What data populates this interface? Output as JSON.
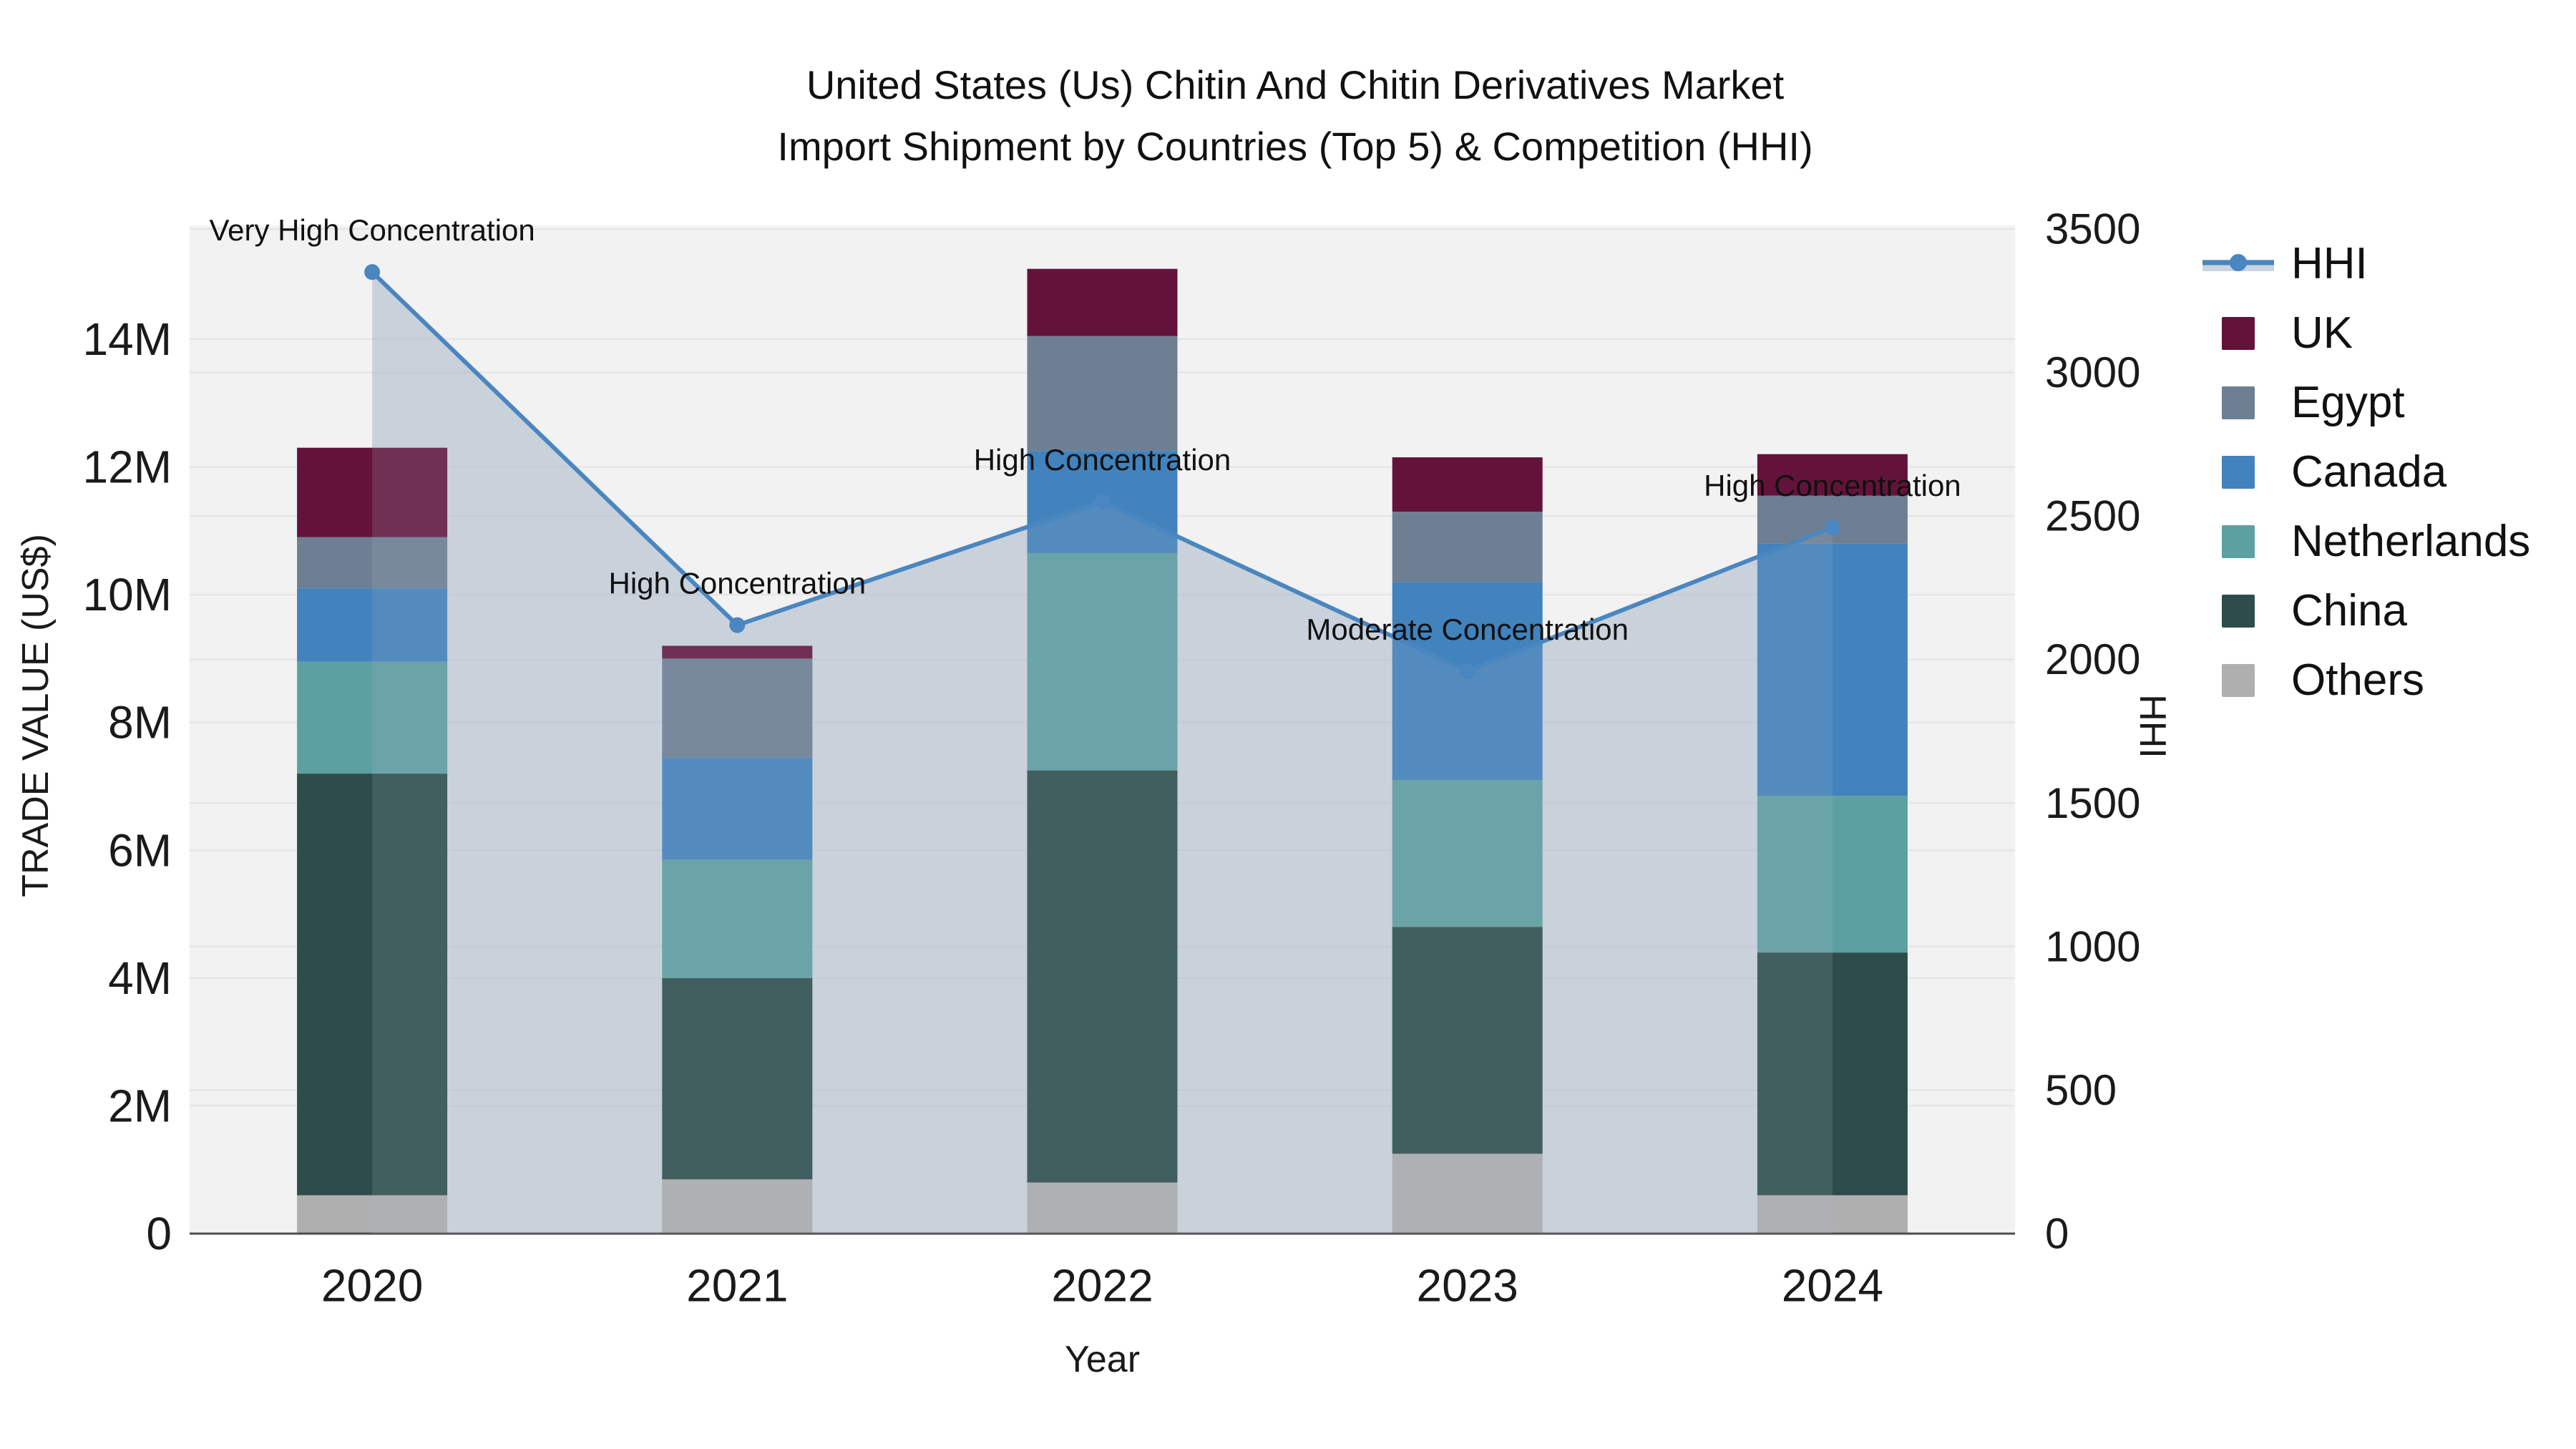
{
  "title": {
    "line1": "United States (Us) Chitin And Chitin Derivatives Market",
    "line2": "Import Shipment by Countries (Top 5) & Competition (HHI)"
  },
  "axes": {
    "x": {
      "title": "Year",
      "categories": [
        "2020",
        "2021",
        "2022",
        "2023",
        "2024"
      ]
    },
    "y_left": {
      "title": "TRADE VALUE (US$)",
      "tick_labels": [
        "0",
        "2M",
        "4M",
        "6M",
        "8M",
        "10M",
        "12M",
        "14M"
      ],
      "tick_values_millions": [
        0,
        2,
        4,
        6,
        8,
        10,
        12,
        14
      ],
      "range_millions": [
        0,
        15.78
      ]
    },
    "y_right": {
      "title": "HHI",
      "tick_values": [
        0,
        500,
        1000,
        1500,
        2000,
        2500,
        3000,
        3500
      ],
      "range": [
        0,
        3500
      ]
    }
  },
  "chart_data": {
    "type": "stacked-bar+line",
    "title": "United States (Us) Chitin And Chitin Derivatives Market Import Shipment by Countries (Top 5) & Competition (HHI)",
    "xlabel": "Year",
    "ylabel_left": "TRADE VALUE (US$)",
    "ylabel_right": "HHI",
    "categories": [
      "2020",
      "2021",
      "2022",
      "2023",
      "2024"
    ],
    "unit": "US$ millions",
    "ylim_left_millions": [
      0,
      15.78
    ],
    "ylim_right": [
      0,
      3500
    ],
    "grid": true,
    "legend_position": "right",
    "stack_series_bottom_to_top": [
      {
        "name": "Others",
        "axis": "left",
        "values_millions": [
          0.6,
          0.85,
          0.8,
          1.25,
          0.6
        ]
      },
      {
        "name": "China",
        "axis": "left",
        "values_millions": [
          6.6,
          3.15,
          6.45,
          3.55,
          3.8
        ]
      },
      {
        "name": "Netherlands",
        "axis": "left",
        "values_millions": [
          1.75,
          1.85,
          3.4,
          2.3,
          2.45
        ]
      },
      {
        "name": "Canada",
        "axis": "left",
        "values_millions": [
          1.15,
          1.6,
          1.6,
          3.1,
          3.95
        ]
      },
      {
        "name": "Egypt",
        "axis": "left",
        "values_millions": [
          0.8,
          1.55,
          1.8,
          1.1,
          0.75
        ]
      },
      {
        "name": "UK",
        "axis": "left",
        "values_millions": [
          1.4,
          0.2,
          1.05,
          0.85,
          0.65
        ]
      }
    ],
    "bar_totals_millions": [
      12.3,
      9.2,
      15.1,
      12.15,
      12.2
    ],
    "line_series": {
      "name": "HHI",
      "axis": "right",
      "values": [
        3350,
        2120,
        2550,
        1960,
        2460
      ]
    },
    "annotations": [
      {
        "category": "2020",
        "text": "Very High Concentration"
      },
      {
        "category": "2021",
        "text": "High Concentration"
      },
      {
        "category": "2022",
        "text": "High Concentration"
      },
      {
        "category": "2023",
        "text": "Moderate Concentration"
      },
      {
        "category": "2024",
        "text": "High Concentration"
      }
    ]
  },
  "legend": {
    "items": [
      {
        "label": "HHI",
        "type": "line-marker"
      },
      {
        "label": "UK",
        "type": "swatch"
      },
      {
        "label": "Egypt",
        "type": "swatch"
      },
      {
        "label": "Canada",
        "type": "swatch"
      },
      {
        "label": "Netherlands",
        "type": "swatch"
      },
      {
        "label": "China",
        "type": "swatch"
      },
      {
        "label": "Others",
        "type": "swatch"
      }
    ]
  },
  "colors": {
    "UK": "#63133a",
    "Egypt": "#6e7f93",
    "Canada": "#4282bd",
    "Netherlands": "#5da0a1",
    "China": "#2d4c4a",
    "Others": "#b0afaf",
    "hhi_line": "#4a86c0",
    "hhi_area": "#a9b6c9",
    "plot_background": "#f2f2f2",
    "gridline": "#e3e3e3",
    "axis_line": "#4d4d4d",
    "text": "#1a1a1a"
  }
}
